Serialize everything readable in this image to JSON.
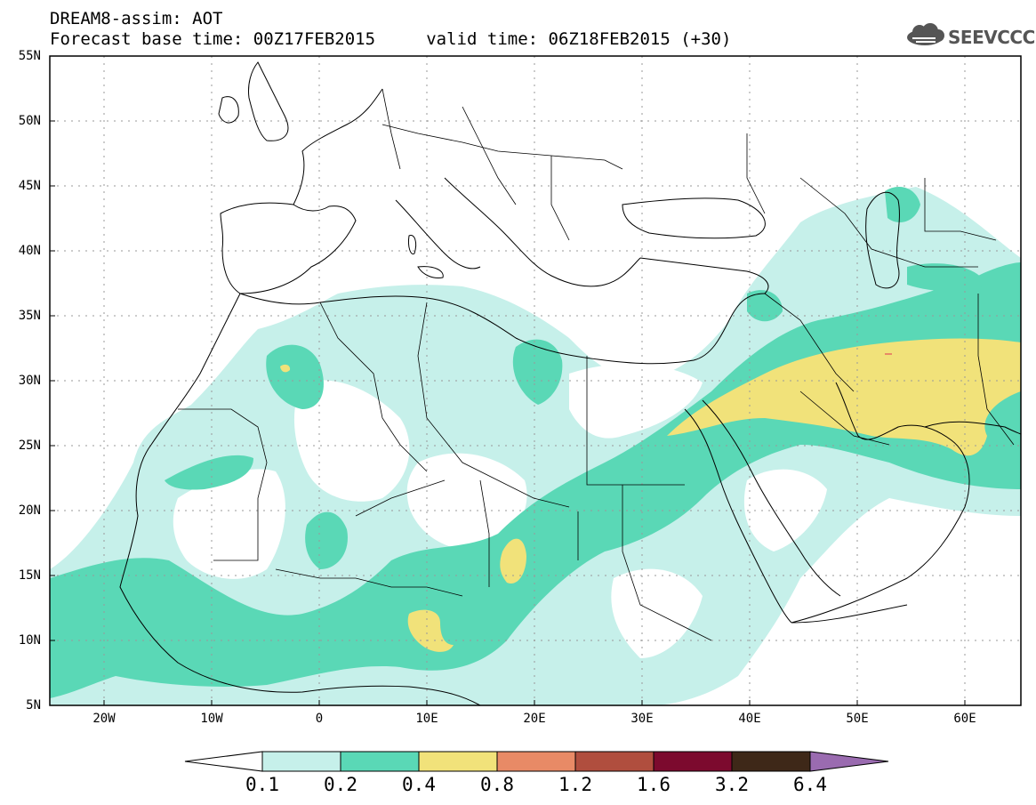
{
  "header": {
    "line1": "DREAM8-assim: AOT",
    "line2": "Forecast base time: 00Z17FEB2015     valid time: 06Z18FEB2015 (+30)",
    "logo_text": "SEEVCCC",
    "logo_icon": "cloud-icon"
  },
  "map": {
    "lat_labels": [
      "55N",
      "50N",
      "45N",
      "40N",
      "35N",
      "30N",
      "25N",
      "20N",
      "15N",
      "10N",
      "5N"
    ],
    "lon_labels": [
      "20W",
      "10W",
      "0",
      "10E",
      "20E",
      "30E",
      "40E",
      "50E",
      "60E"
    ],
    "extent": {
      "lon_min": -25,
      "lon_max": 65,
      "lat_min": 5,
      "lat_max": 55
    }
  },
  "colorbar": {
    "labels": [
      "0.1",
      "0.2",
      "0.4",
      "0.8",
      "1.2",
      "1.6",
      "3.2",
      "6.4"
    ],
    "colors": [
      "#c6f0ea",
      "#5ad8b6",
      "#f1e27a",
      "#e88a66",
      "#b04e3e",
      "#7c0a2e",
      "#3e2818",
      "#9a6bb0"
    ]
  }
}
